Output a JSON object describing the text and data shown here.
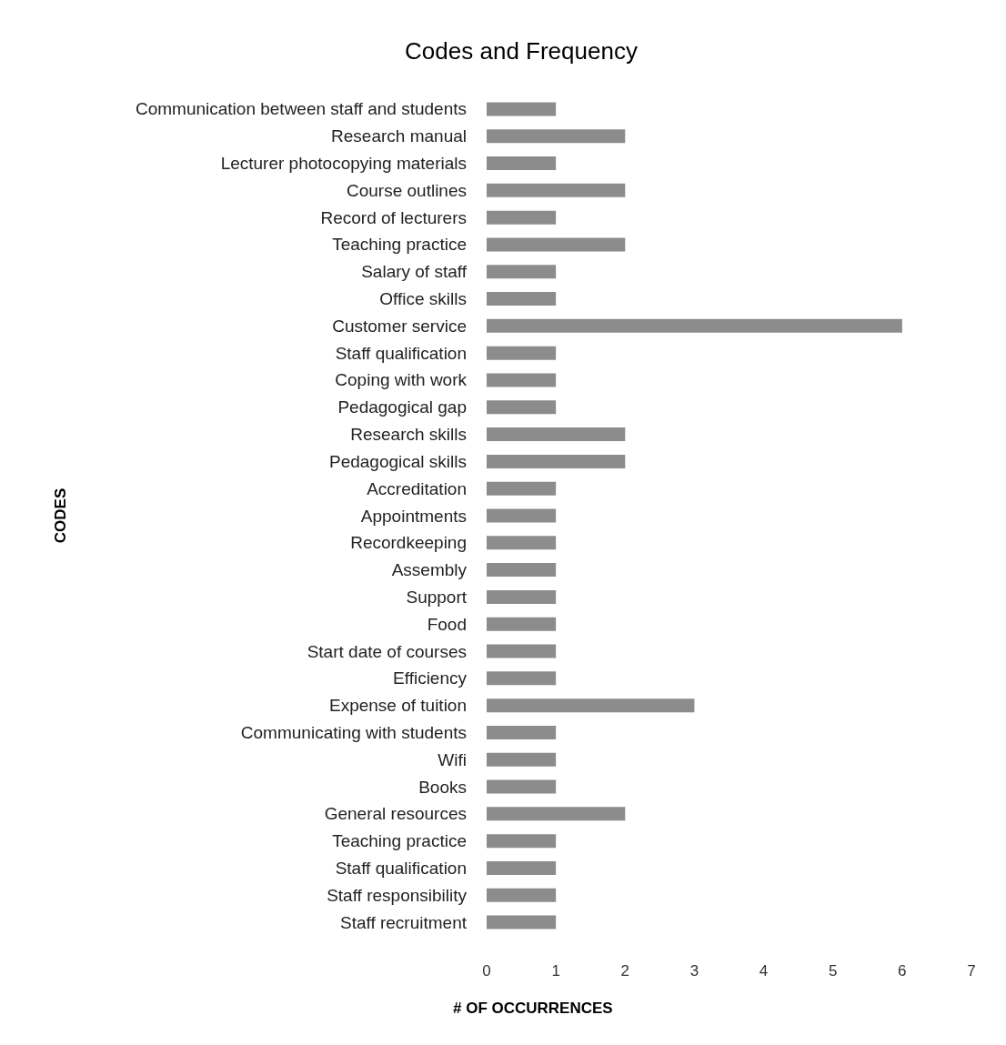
{
  "chart_data": {
    "type": "bar",
    "orientation": "horizontal",
    "title": "Codes and Frequency",
    "xlabel": "# OF OCCURRENCES",
    "ylabel": "CODES",
    "categories": [
      "Communication between staff and students",
      "Research manual",
      "Lecturer photocopying materials",
      "Course outlines",
      "Record of lecturers",
      "Teaching practice",
      "Salary of staff",
      "Office skills",
      "Customer service",
      "Staff qualification",
      "Coping with work",
      "Pedagogical gap",
      "Research skills",
      "Pedagogical skills",
      "Accreditation",
      "Appointments",
      "Recordkeeping",
      "Assembly",
      "Support",
      "Food",
      "Start date of courses",
      "Efficiency",
      "Expense of tuition",
      "Communicating with students",
      "Wifi",
      "Books",
      "General resources",
      "Teaching practice",
      "Staff qualification",
      "Staff responsibility",
      "Staff recruitment"
    ],
    "values": [
      1,
      2,
      1,
      2,
      1,
      2,
      1,
      1,
      6,
      1,
      1,
      1,
      2,
      2,
      1,
      1,
      1,
      1,
      1,
      1,
      1,
      1,
      3,
      1,
      1,
      1,
      2,
      1,
      1,
      1,
      1
    ],
    "color": "#8c8c8c",
    "xlim": [
      0,
      7
    ],
    "xticks": [
      0,
      1,
      2,
      3,
      4,
      5,
      6,
      7
    ],
    "grid": false
  }
}
